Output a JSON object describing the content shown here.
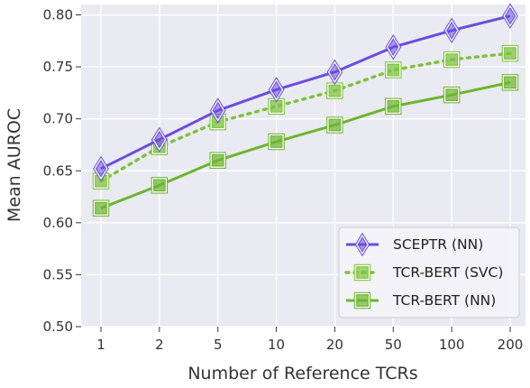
{
  "chart_data": {
    "type": "line",
    "xlabel": "Number of Reference TCRs",
    "ylabel": "Mean AUROC",
    "categories": [
      "1",
      "2",
      "5",
      "10",
      "20",
      "50",
      "100",
      "200"
    ],
    "ylim": [
      0.5,
      0.81
    ],
    "yticks": [
      "0.50",
      "0.55",
      "0.60",
      "0.65",
      "0.70",
      "0.75",
      "0.80"
    ],
    "grid": true,
    "legend_position": "bottom-right",
    "series": [
      {
        "name": "SCEPTR (NN)",
        "values": [
          0.652,
          0.68,
          0.708,
          0.728,
          0.745,
          0.769,
          0.785,
          0.799
        ],
        "color": "#6a4de0",
        "marker": "diamond",
        "line": "solid"
      },
      {
        "name": "TCR-BERT (SVC)",
        "values": [
          0.64,
          0.673,
          0.697,
          0.712,
          0.727,
          0.747,
          0.757,
          0.763
        ],
        "color": "#7cc23a",
        "marker": "square",
        "line": "dotted"
      },
      {
        "name": "TCR-BERT (NN)",
        "values": [
          0.614,
          0.636,
          0.66,
          0.678,
          0.694,
          0.712,
          0.723,
          0.735
        ],
        "color": "#6cb52e",
        "marker": "square",
        "line": "solid"
      }
    ]
  }
}
